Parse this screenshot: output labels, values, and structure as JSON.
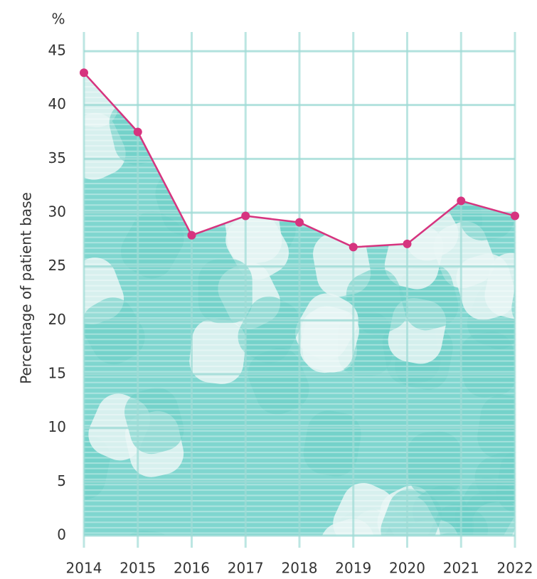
{
  "chart_data": {
    "type": "line",
    "y_unit": "%",
    "y_label": "Percentage of patient base",
    "categories": [
      "2014",
      "2015",
      "2016",
      "2017",
      "2018",
      "2019",
      "2020",
      "2021",
      "2022"
    ],
    "series": [
      {
        "color": "#d6347f",
        "values": [
          43,
          37.5,
          27.9,
          29.7,
          29.1,
          26.8,
          27.1,
          31.1,
          29.7
        ]
      }
    ],
    "ylim": [
      0,
      45
    ],
    "yticks": [
      0,
      5,
      10,
      15,
      20,
      25,
      30,
      35,
      40,
      45
    ],
    "grid": true,
    "area_color": "#7fd6cf"
  }
}
